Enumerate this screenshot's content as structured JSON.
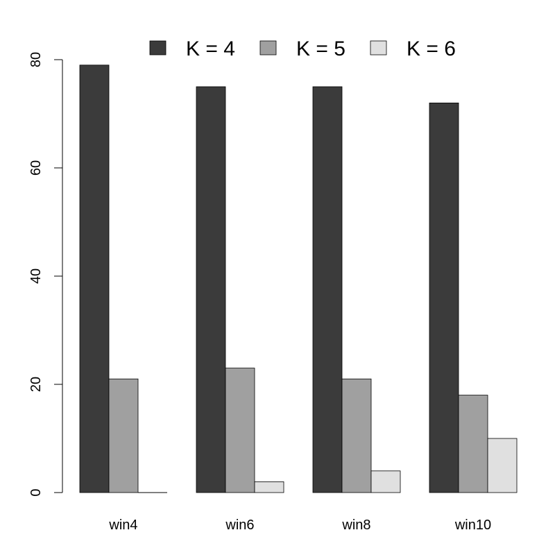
{
  "chart_data": {
    "type": "bar",
    "categories": [
      "win4",
      "win6",
      "win8",
      "win10"
    ],
    "series": [
      {
        "name": "K = 4",
        "values": [
          79,
          75,
          75,
          72
        ],
        "color": "#3b3b3b"
      },
      {
        "name": "K = 5",
        "values": [
          21,
          23,
          21,
          18
        ],
        "color": "#a0a0a0"
      },
      {
        "name": "K = 6",
        "values": [
          0,
          2,
          4,
          10
        ],
        "color": "#e0e0e0"
      }
    ],
    "ylim": [
      0,
      80
    ],
    "yticks": [
      "0",
      "20",
      "40",
      "60",
      "80"
    ],
    "title": "",
    "xlabel": "",
    "ylabel": "",
    "grid": false,
    "legend_position": "top",
    "colors": {
      "bar_border": "#000000",
      "axis": "#000000"
    }
  }
}
